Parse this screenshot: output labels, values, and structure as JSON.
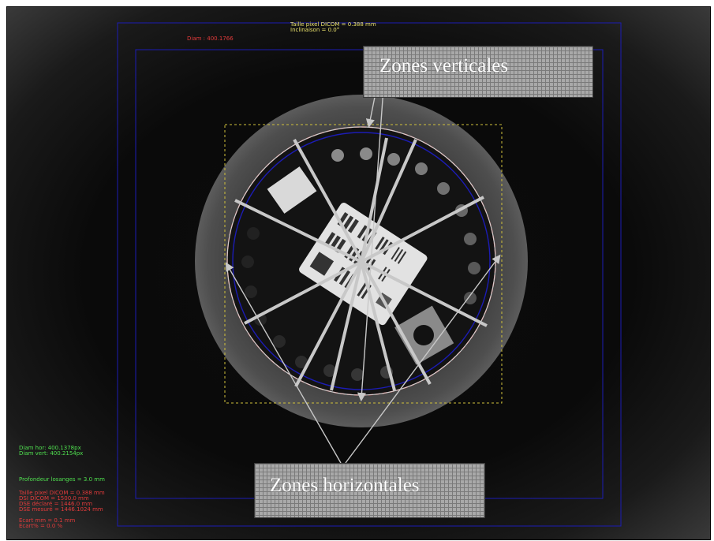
{
  "overlay": {
    "dicom_pixel_size": "Taille pixel DICOM = 0.388 mm",
    "inclination": "Inclinaison = 0.0°",
    "diameter": "Diam : 400.1766",
    "diam_hor": "Diam hor: 400.1378px",
    "diam_vert": "Diam vert: 400.2154px",
    "diamond_depth": "Profondeur losanges = 3.0 mm",
    "dicom_pixel_size_2": "Taille pixel DICOM = 0.388 mm",
    "dsi_dicom": "DSI DICOM = 1500.0 mm",
    "dse_declared": "DSE déclaré = 1446.0 mm",
    "dse_measured": "DSE mesuré = 1446.1024 mm",
    "gap_mm": "Ecart mm = 0.1 mm",
    "gap_percent": "Ecart% = 0.0 %"
  },
  "annotations": {
    "vertical_zones": "Zones verticales",
    "horizontal_zones": "Zones horizontales"
  },
  "colors": {
    "overlay_yellow": "#e8e06a",
    "overlay_red": "#e23b3b",
    "overlay_green": "#4fe04f",
    "roi_blue": "#1c1cb4",
    "arrow_grey": "#c8c8c8"
  }
}
